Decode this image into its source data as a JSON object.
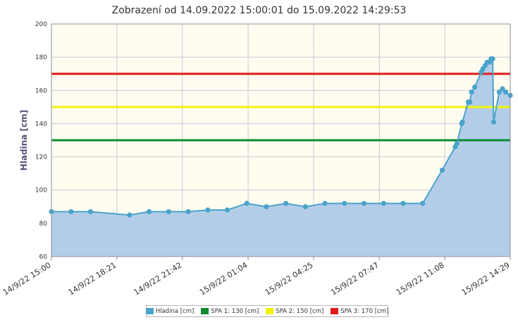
{
  "chart_data": {
    "type": "area",
    "title": "Zobrazení od 14.09.2022 15:00:01 do 15.09.2022 14:29:53",
    "ylabel": "Hladina [cm]",
    "xlabel": "",
    "ylim": [
      60,
      200
    ],
    "yticks": [
      60,
      80,
      100,
      120,
      140,
      160,
      180,
      200
    ],
    "xlim": [
      "2022-09-14 15:00",
      "2022-09-15 14:29"
    ],
    "xticks": [
      {
        "t": "2022-09-14 15:00",
        "label": "14/9/22 15:00"
      },
      {
        "t": "2022-09-14 18:21",
        "label": "14/9/22 18:21"
      },
      {
        "t": "2022-09-14 21:42",
        "label": "14/9/22 21:42"
      },
      {
        "t": "2022-09-15 01:04",
        "label": "15/9/22 01:04"
      },
      {
        "t": "2022-09-15 04:25",
        "label": "15/9/22 04:25"
      },
      {
        "t": "2022-09-15 07:47",
        "label": "15/9/22 07:47"
      },
      {
        "t": "2022-09-15 11:08",
        "label": "15/9/22 11:08"
      },
      {
        "t": "2022-09-15 14:29",
        "label": "15/9/22 14:29"
      }
    ],
    "grid": true,
    "legend_position": "bottom",
    "series": [
      {
        "name": "Hladina [cm]",
        "color": "#4aa3c9",
        "fill": "#b3cde9",
        "points": [
          [
            "2022-09-14 15:00",
            87
          ],
          [
            "2022-09-14 16:00",
            87
          ],
          [
            "2022-09-14 17:00",
            87
          ],
          [
            "2022-09-14 19:00",
            85
          ],
          [
            "2022-09-14 20:00",
            87
          ],
          [
            "2022-09-14 21:00",
            87
          ],
          [
            "2022-09-14 22:00",
            87
          ],
          [
            "2022-09-14 23:00",
            88
          ],
          [
            "2022-09-15 00:00",
            88
          ],
          [
            "2022-09-15 01:00",
            92
          ],
          [
            "2022-09-15 02:00",
            90
          ],
          [
            "2022-09-15 03:00",
            92
          ],
          [
            "2022-09-15 04:00",
            90
          ],
          [
            "2022-09-15 05:00",
            92
          ],
          [
            "2022-09-15 06:00",
            92
          ],
          [
            "2022-09-15 07:00",
            92
          ],
          [
            "2022-09-15 08:00",
            92
          ],
          [
            "2022-09-15 09:00",
            92
          ],
          [
            "2022-09-15 10:00",
            92
          ],
          [
            "2022-09-15 11:00",
            112
          ],
          [
            "2022-09-15 11:40",
            126
          ],
          [
            "2022-09-15 11:45",
            128
          ],
          [
            "2022-09-15 12:00",
            140
          ],
          [
            "2022-09-15 12:02",
            141
          ],
          [
            "2022-09-15 12:20",
            153
          ],
          [
            "2022-09-15 12:25",
            153
          ],
          [
            "2022-09-15 12:30",
            159
          ],
          [
            "2022-09-15 12:40",
            162
          ],
          [
            "2022-09-15 13:00",
            171
          ],
          [
            "2022-09-15 13:05",
            173
          ],
          [
            "2022-09-15 13:12",
            175
          ],
          [
            "2022-09-15 13:18",
            177
          ],
          [
            "2022-09-15 13:25",
            177
          ],
          [
            "2022-09-15 13:30",
            179
          ],
          [
            "2022-09-15 13:35",
            179
          ],
          [
            "2022-09-15 13:38",
            141
          ],
          [
            "2022-09-15 13:55",
            159
          ],
          [
            "2022-09-15 14:05",
            161
          ],
          [
            "2022-09-15 14:15",
            159
          ],
          [
            "2022-09-15 14:29",
            157
          ]
        ]
      },
      {
        "name": "SPA 1: 130 [cm]",
        "color": "#0e8a2f",
        "value": 130
      },
      {
        "name": "SPA 2: 150 [cm]",
        "color": "#f2f20c",
        "value": 150
      },
      {
        "name": "SPA 3: 170 [cm]",
        "color": "#e01b1b",
        "value": 170
      }
    ]
  },
  "colors": {
    "plot_background": "#fffdf0",
    "grid": "#c8c8d8",
    "axis_text": "#333333",
    "ylabel_text": "#555577"
  }
}
